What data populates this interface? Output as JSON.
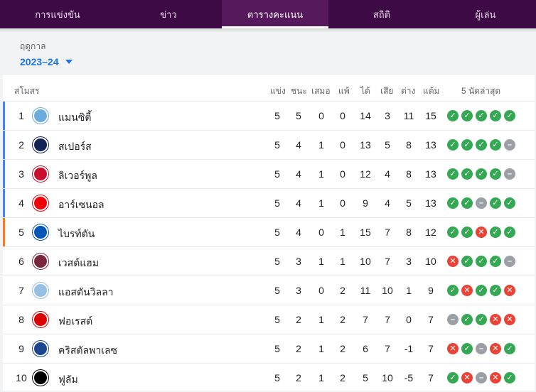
{
  "nav": {
    "tabs": [
      {
        "label": "การแข่งขัน",
        "active": false
      },
      {
        "label": "ข่าว",
        "active": false
      },
      {
        "label": "ตารางคะแนน",
        "active": true
      },
      {
        "label": "สถิติ",
        "active": false
      },
      {
        "label": "ผู้เล่น",
        "active": false
      }
    ]
  },
  "season": {
    "label": "ฤดูกาล",
    "value": "2023–24"
  },
  "table": {
    "headers": {
      "club": "สโมสร",
      "played": "แข่ง",
      "won": "ชนะ",
      "drawn": "เสมอ",
      "lost": "แพ้",
      "gf": "ได้",
      "ga": "เสีย",
      "gd": "ต่าง",
      "pts": "แต้ม",
      "form": "5 นัดล่าสุด"
    },
    "qualification_colors": {
      "ucl": "#4285f4",
      "uel": "#fa7b17"
    },
    "form_colors": {
      "W": "#34a853",
      "L": "#ea4335",
      "D": "#9aa0a6"
    },
    "rows": [
      {
        "pos": "1",
        "club": "แมนซิตี้",
        "crest_color": "#6cabdd",
        "crest_icon": "man-city-crest-icon",
        "qual": "ucl",
        "played": "5",
        "won": "5",
        "drawn": "0",
        "lost": "0",
        "gf": "14",
        "ga": "3",
        "gd": "11",
        "pts": "15",
        "form": [
          "W",
          "W",
          "W",
          "W",
          "W"
        ]
      },
      {
        "pos": "2",
        "club": "สเปอร์ส",
        "crest_color": "#132257",
        "crest_icon": "spurs-crest-icon",
        "qual": "ucl",
        "played": "5",
        "won": "4",
        "drawn": "1",
        "lost": "0",
        "gf": "13",
        "ga": "5",
        "gd": "8",
        "pts": "13",
        "form": [
          "W",
          "W",
          "W",
          "W",
          "D"
        ]
      },
      {
        "pos": "3",
        "club": "ลิเวอร์พูล",
        "crest_color": "#c8102e",
        "crest_icon": "liverpool-crest-icon",
        "qual": "ucl",
        "played": "5",
        "won": "4",
        "drawn": "1",
        "lost": "0",
        "gf": "12",
        "ga": "4",
        "gd": "8",
        "pts": "13",
        "form": [
          "W",
          "W",
          "W",
          "W",
          "D"
        ]
      },
      {
        "pos": "4",
        "club": "อาร์เซนอล",
        "crest_color": "#ef0107",
        "crest_icon": "arsenal-crest-icon",
        "qual": "ucl",
        "played": "5",
        "won": "4",
        "drawn": "1",
        "lost": "0",
        "gf": "9",
        "ga": "4",
        "gd": "5",
        "pts": "13",
        "form": [
          "W",
          "W",
          "D",
          "W",
          "W"
        ]
      },
      {
        "pos": "5",
        "club": "ไบรท์ตัน",
        "crest_color": "#0057b8",
        "crest_icon": "brighton-crest-icon",
        "qual": "uel",
        "played": "5",
        "won": "4",
        "drawn": "0",
        "lost": "1",
        "gf": "15",
        "ga": "7",
        "gd": "8",
        "pts": "12",
        "form": [
          "W",
          "W",
          "L",
          "W",
          "W"
        ]
      },
      {
        "pos": "6",
        "club": "เวสต์แฮม",
        "crest_color": "#7a263a",
        "crest_icon": "west-ham-crest-icon",
        "qual": "",
        "played": "5",
        "won": "3",
        "drawn": "1",
        "lost": "1",
        "gf": "10",
        "ga": "7",
        "gd": "3",
        "pts": "10",
        "form": [
          "L",
          "W",
          "W",
          "W",
          "D"
        ]
      },
      {
        "pos": "7",
        "club": "แอสตันวิลลา",
        "crest_color": "#95bfe5",
        "crest_icon": "aston-villa-crest-icon",
        "qual": "",
        "played": "5",
        "won": "3",
        "drawn": "0",
        "lost": "2",
        "gf": "11",
        "ga": "10",
        "gd": "1",
        "pts": "9",
        "form": [
          "W",
          "L",
          "W",
          "W",
          "L"
        ]
      },
      {
        "pos": "8",
        "club": "ฟอเรสต์",
        "crest_color": "#dd0000",
        "crest_icon": "nottingham-forest-crest-icon",
        "qual": "",
        "played": "5",
        "won": "2",
        "drawn": "1",
        "lost": "2",
        "gf": "7",
        "ga": "7",
        "gd": "0",
        "pts": "7",
        "form": [
          "D",
          "W",
          "W",
          "L",
          "L"
        ]
      },
      {
        "pos": "9",
        "club": "คริสตัลพาเลซ",
        "crest_color": "#1b458f",
        "crest_icon": "crystal-palace-crest-icon",
        "qual": "",
        "played": "5",
        "won": "2",
        "drawn": "1",
        "lost": "2",
        "gf": "6",
        "ga": "7",
        "gd": "-1",
        "pts": "7",
        "form": [
          "L",
          "W",
          "D",
          "L",
          "W"
        ]
      },
      {
        "pos": "10",
        "club": "ฟูลัม",
        "crest_color": "#000000",
        "crest_icon": "fulham-crest-icon",
        "qual": "",
        "played": "5",
        "won": "2",
        "drawn": "1",
        "lost": "2",
        "gf": "5",
        "ga": "10",
        "gd": "-5",
        "pts": "7",
        "form": [
          "W",
          "L",
          "D",
          "L",
          "W"
        ]
      }
    ]
  }
}
